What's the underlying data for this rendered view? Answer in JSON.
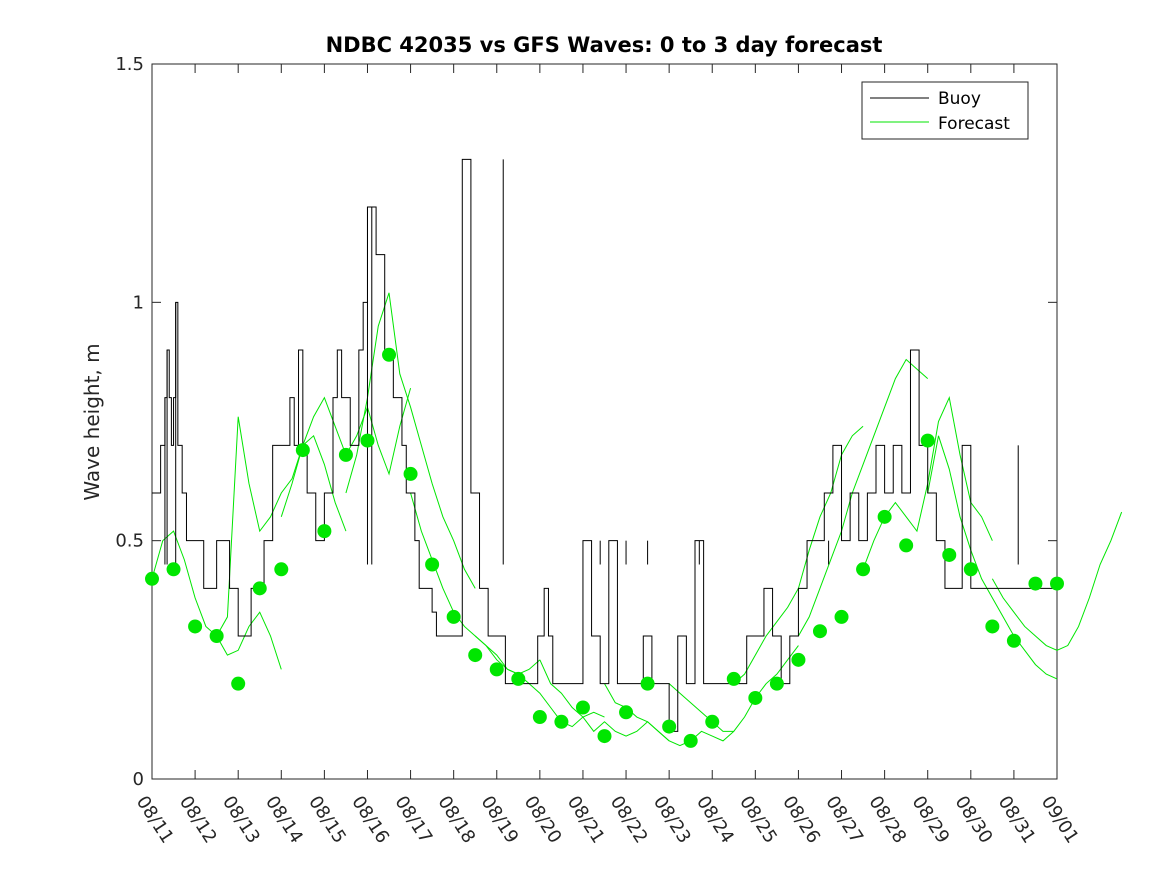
{
  "chart_data": {
    "type": "line",
    "title": "NDBC 42035 vs GFS Waves: 0 to 3 day forecast",
    "xlabel": "",
    "ylabel": "Wave height, m",
    "xlim": [
      0,
      21
    ],
    "ylim": [
      0,
      1.5
    ],
    "x_ticks": [
      0,
      1,
      2,
      3,
      4,
      5,
      6,
      7,
      8,
      9,
      10,
      11,
      12,
      13,
      14,
      15,
      16,
      17,
      18,
      19,
      20,
      21
    ],
    "x_tick_labels": [
      "08/11",
      "08/12",
      "08/13",
      "08/14",
      "08/15",
      "08/16",
      "08/17",
      "08/18",
      "08/19",
      "08/20",
      "08/21",
      "08/22",
      "08/23",
      "08/24",
      "08/25",
      "08/26",
      "08/27",
      "08/28",
      "08/29",
      "08/30",
      "08/31",
      "09/01"
    ],
    "y_ticks": [
      0,
      0.5,
      1,
      1.5
    ],
    "y_tick_labels": [
      "0",
      "0.5",
      "1",
      "1.5"
    ],
    "grid": false,
    "legend": {
      "position": "top-right",
      "entries": [
        {
          "label": "Buoy",
          "color": "#000000"
        },
        {
          "label": "Forecast",
          "color": "#00e600"
        }
      ]
    },
    "series": [
      {
        "name": "Buoy",
        "color": "#000000",
        "x": [
          0,
          0.2,
          0.3,
          0.35,
          0.4,
          0.45,
          0.5,
          0.55,
          0.6,
          0.7,
          0.8,
          0.9,
          1.0,
          1.2,
          1.5,
          1.8,
          1.9,
          2.0,
          2.1,
          2.2,
          2.3,
          2.6,
          2.8,
          3.0,
          3.2,
          3.3,
          3.4,
          3.5,
          3.6,
          3.8,
          4.0,
          4.2,
          4.3,
          4.4,
          4.6,
          4.8,
          4.9,
          5.0,
          5.2,
          5.4,
          5.6,
          5.8,
          5.9,
          6.1,
          6.2,
          6.3,
          6.4,
          6.5,
          6.6,
          6.7,
          6.9,
          7.0,
          7.2,
          7.4,
          7.6,
          7.8,
          8.0,
          8.2,
          8.4,
          8.6,
          8.8,
          8.95,
          9.05,
          9.1,
          9.2,
          9.3,
          9.4,
          9.6,
          9.8,
          10.0,
          10.2,
          10.4,
          10.6,
          10.8,
          11.0,
          11.2,
          11.4,
          11.6,
          11.8,
          12.0,
          12.2,
          12.4,
          12.6,
          12.8,
          13.0,
          13.2,
          13.4,
          13.6,
          13.8,
          14.0,
          14.2,
          14.4,
          14.6,
          14.8,
          15.0,
          15.2,
          15.4,
          15.6,
          15.8,
          16.0,
          16.2,
          16.4,
          16.6,
          16.8,
          17.0,
          17.2,
          17.4,
          17.6,
          17.8,
          18.0,
          18.2,
          18.4,
          18.5,
          18.6,
          18.8,
          19.0,
          19.2,
          19.4,
          19.6,
          19.8,
          20.0,
          20.2,
          20.4,
          20.6,
          20.8,
          21.0
        ],
        "values": [
          0.6,
          0.7,
          0.8,
          0.9,
          0.8,
          0.7,
          0.8,
          1.0,
          0.7,
          0.6,
          0.5,
          0.5,
          0.5,
          0.4,
          0.5,
          0.4,
          0.4,
          0.3,
          0.3,
          0.3,
          0.4,
          0.5,
          0.7,
          0.7,
          0.8,
          0.7,
          0.9,
          0.7,
          0.6,
          0.5,
          0.6,
          0.8,
          0.9,
          0.8,
          0.7,
          0.9,
          1.0,
          1.2,
          1.1,
          0.9,
          0.8,
          0.7,
          0.6,
          0.5,
          0.4,
          0.4,
          0.4,
          0.35,
          0.3,
          0.3,
          0.3,
          0.3,
          1.3,
          0.6,
          0.4,
          0.3,
          0.3,
          0.2,
          0.2,
          0.2,
          0.2,
          0.3,
          0.3,
          0.4,
          0.3,
          0.2,
          0.2,
          0.2,
          0.2,
          0.5,
          0.3,
          0.2,
          0.5,
          0.2,
          0.2,
          0.2,
          0.3,
          0.2,
          0.2,
          0.1,
          0.3,
          0.2,
          0.5,
          0.2,
          0.2,
          0.2,
          0.2,
          0.2,
          0.3,
          0.3,
          0.4,
          0.3,
          0.2,
          0.3,
          0.4,
          0.5,
          0.5,
          0.6,
          0.7,
          0.5,
          0.6,
          0.5,
          0.6,
          0.7,
          0.6,
          0.7,
          0.6,
          0.9,
          0.7,
          0.6,
          0.5,
          0.4,
          0.4,
          0.4,
          0.7,
          0.4,
          0.4,
          0.4,
          0.4,
          0.4,
          0.4,
          0.4,
          0.4,
          0.4,
          0.4,
          0.4
        ],
        "spikes": [
          {
            "x": 0.3,
            "value": 0.8
          },
          {
            "x": 0.35,
            "value": 0.9
          },
          {
            "x": 0.55,
            "value": 1.0
          },
          {
            "x": 5.0,
            "value": 1.2
          },
          {
            "x": 5.1,
            "value": 1.2
          },
          {
            "x": 8.15,
            "value": 1.3
          },
          {
            "x": 10.4,
            "value": 0.5
          },
          {
            "x": 11.0,
            "value": 0.5
          },
          {
            "x": 11.5,
            "value": 0.5
          },
          {
            "x": 12.7,
            "value": 0.5
          },
          {
            "x": 15.7,
            "value": 0.5
          },
          {
            "x": 20.1,
            "value": 0.7
          }
        ]
      },
      {
        "name": "Forecast",
        "color": "#00e600",
        "runs": [
          {
            "start": 0,
            "values": [
              0.42,
              0.5,
              0.52,
              0.46,
              0.38,
              0.32,
              0.3,
              0.26,
              0.27,
              0.32,
              0.35,
              0.3,
              0.23
            ]
          },
          {
            "start": 1.5,
            "values": [
              0.3,
              0.34,
              0.76,
              0.62,
              0.52,
              0.55,
              0.6,
              0.63,
              0.7,
              0.72,
              0.66,
              0.58,
              0.52
            ]
          },
          {
            "start": 3.0,
            "values": [
              0.55,
              0.62,
              0.7,
              0.76,
              0.8,
              0.74,
              0.68,
              0.72,
              0.78,
              0.7,
              0.64,
              0.74,
              0.82
            ]
          },
          {
            "start": 4.5,
            "values": [
              0.6,
              0.68,
              0.8,
              0.95,
              1.02,
              0.85,
              0.78,
              0.7,
              0.62,
              0.55,
              0.5,
              0.44,
              0.4
            ]
          },
          {
            "start": 6.0,
            "values": [
              0.6,
              0.52,
              0.46,
              0.4,
              0.35,
              0.32,
              0.3,
              0.28,
              0.25,
              0.23,
              0.22,
              0.23,
              0.25
            ]
          },
          {
            "start": 7.5,
            "values": [
              0.3,
              0.28,
              0.26,
              0.23,
              0.22,
              0.2,
              0.18,
              0.15,
              0.12,
              0.11,
              0.13,
              0.14,
              0.13
            ]
          },
          {
            "start": 9.0,
            "values": [
              0.25,
              0.2,
              0.18,
              0.15,
              0.13,
              0.1,
              0.12,
              0.1,
              0.09,
              0.1,
              0.12,
              0.1,
              0.08
            ]
          },
          {
            "start": 10.5,
            "values": [
              0.2,
              0.16,
              0.15,
              0.13,
              0.12,
              0.1,
              0.08,
              0.07,
              0.08,
              0.1,
              0.09,
              0.08,
              0.1
            ]
          },
          {
            "start": 12.0,
            "values": [
              0.2,
              0.18,
              0.16,
              0.14,
              0.12,
              0.1,
              0.1,
              0.13,
              0.17,
              0.2,
              0.22,
              0.25,
              0.28
            ]
          },
          {
            "start": 13.5,
            "values": [
              0.2,
              0.22,
              0.26,
              0.3,
              0.33,
              0.36,
              0.4,
              0.48,
              0.55,
              0.6,
              0.68,
              0.72,
              0.74
            ]
          },
          {
            "start": 15.0,
            "values": [
              0.3,
              0.34,
              0.4,
              0.46,
              0.52,
              0.6,
              0.66,
              0.72,
              0.78,
              0.84,
              0.88,
              0.86,
              0.84
            ]
          },
          {
            "start": 16.5,
            "values": [
              0.44,
              0.5,
              0.55,
              0.58,
              0.55,
              0.52,
              0.62,
              0.75,
              0.8,
              0.68,
              0.58,
              0.55,
              0.5
            ]
          },
          {
            "start": 18.0,
            "values": [
              0.6,
              0.72,
              0.65,
              0.55,
              0.48,
              0.42,
              0.38,
              0.34,
              0.3,
              0.27,
              0.24,
              0.22,
              0.21
            ]
          },
          {
            "start": 19.5,
            "values": [
              0.42,
              0.38,
              0.35,
              0.32,
              0.3,
              0.28,
              0.27,
              0.28,
              0.32,
              0.38,
              0.45,
              0.5,
              0.56
            ]
          }
        ],
        "markers": {
          "x": [
            0,
            0.5,
            1.0,
            1.5,
            2.0,
            2.5,
            3.0,
            3.5,
            4.0,
            4.5,
            5.0,
            5.5,
            6.0,
            6.5,
            7.0,
            7.5,
            8.0,
            8.5,
            9.0,
            9.5,
            10.0,
            10.5,
            11.0,
            11.5,
            12.0,
            12.5,
            13.0,
            13.5,
            14.0,
            14.5,
            15.0,
            15.5,
            16.0,
            16.5,
            17.0,
            17.5,
            18.0,
            18.5,
            19.0,
            19.5,
            20.0,
            20.5,
            21.0
          ],
          "values": [
            0.42,
            0.44,
            0.32,
            0.3,
            0.2,
            0.4,
            0.44,
            0.69,
            0.52,
            0.68,
            0.71,
            0.89,
            0.64,
            0.45,
            0.34,
            0.26,
            0.23,
            0.21,
            0.13,
            0.12,
            0.15,
            0.09,
            0.14,
            0.2,
            0.11,
            0.08,
            0.12,
            0.21,
            0.17,
            0.2,
            0.25,
            0.31,
            0.34,
            0.44,
            0.55,
            0.49,
            0.71,
            0.47,
            0.44,
            0.32,
            0.29,
            0.41,
            0.41
          ]
        }
      }
    ]
  }
}
